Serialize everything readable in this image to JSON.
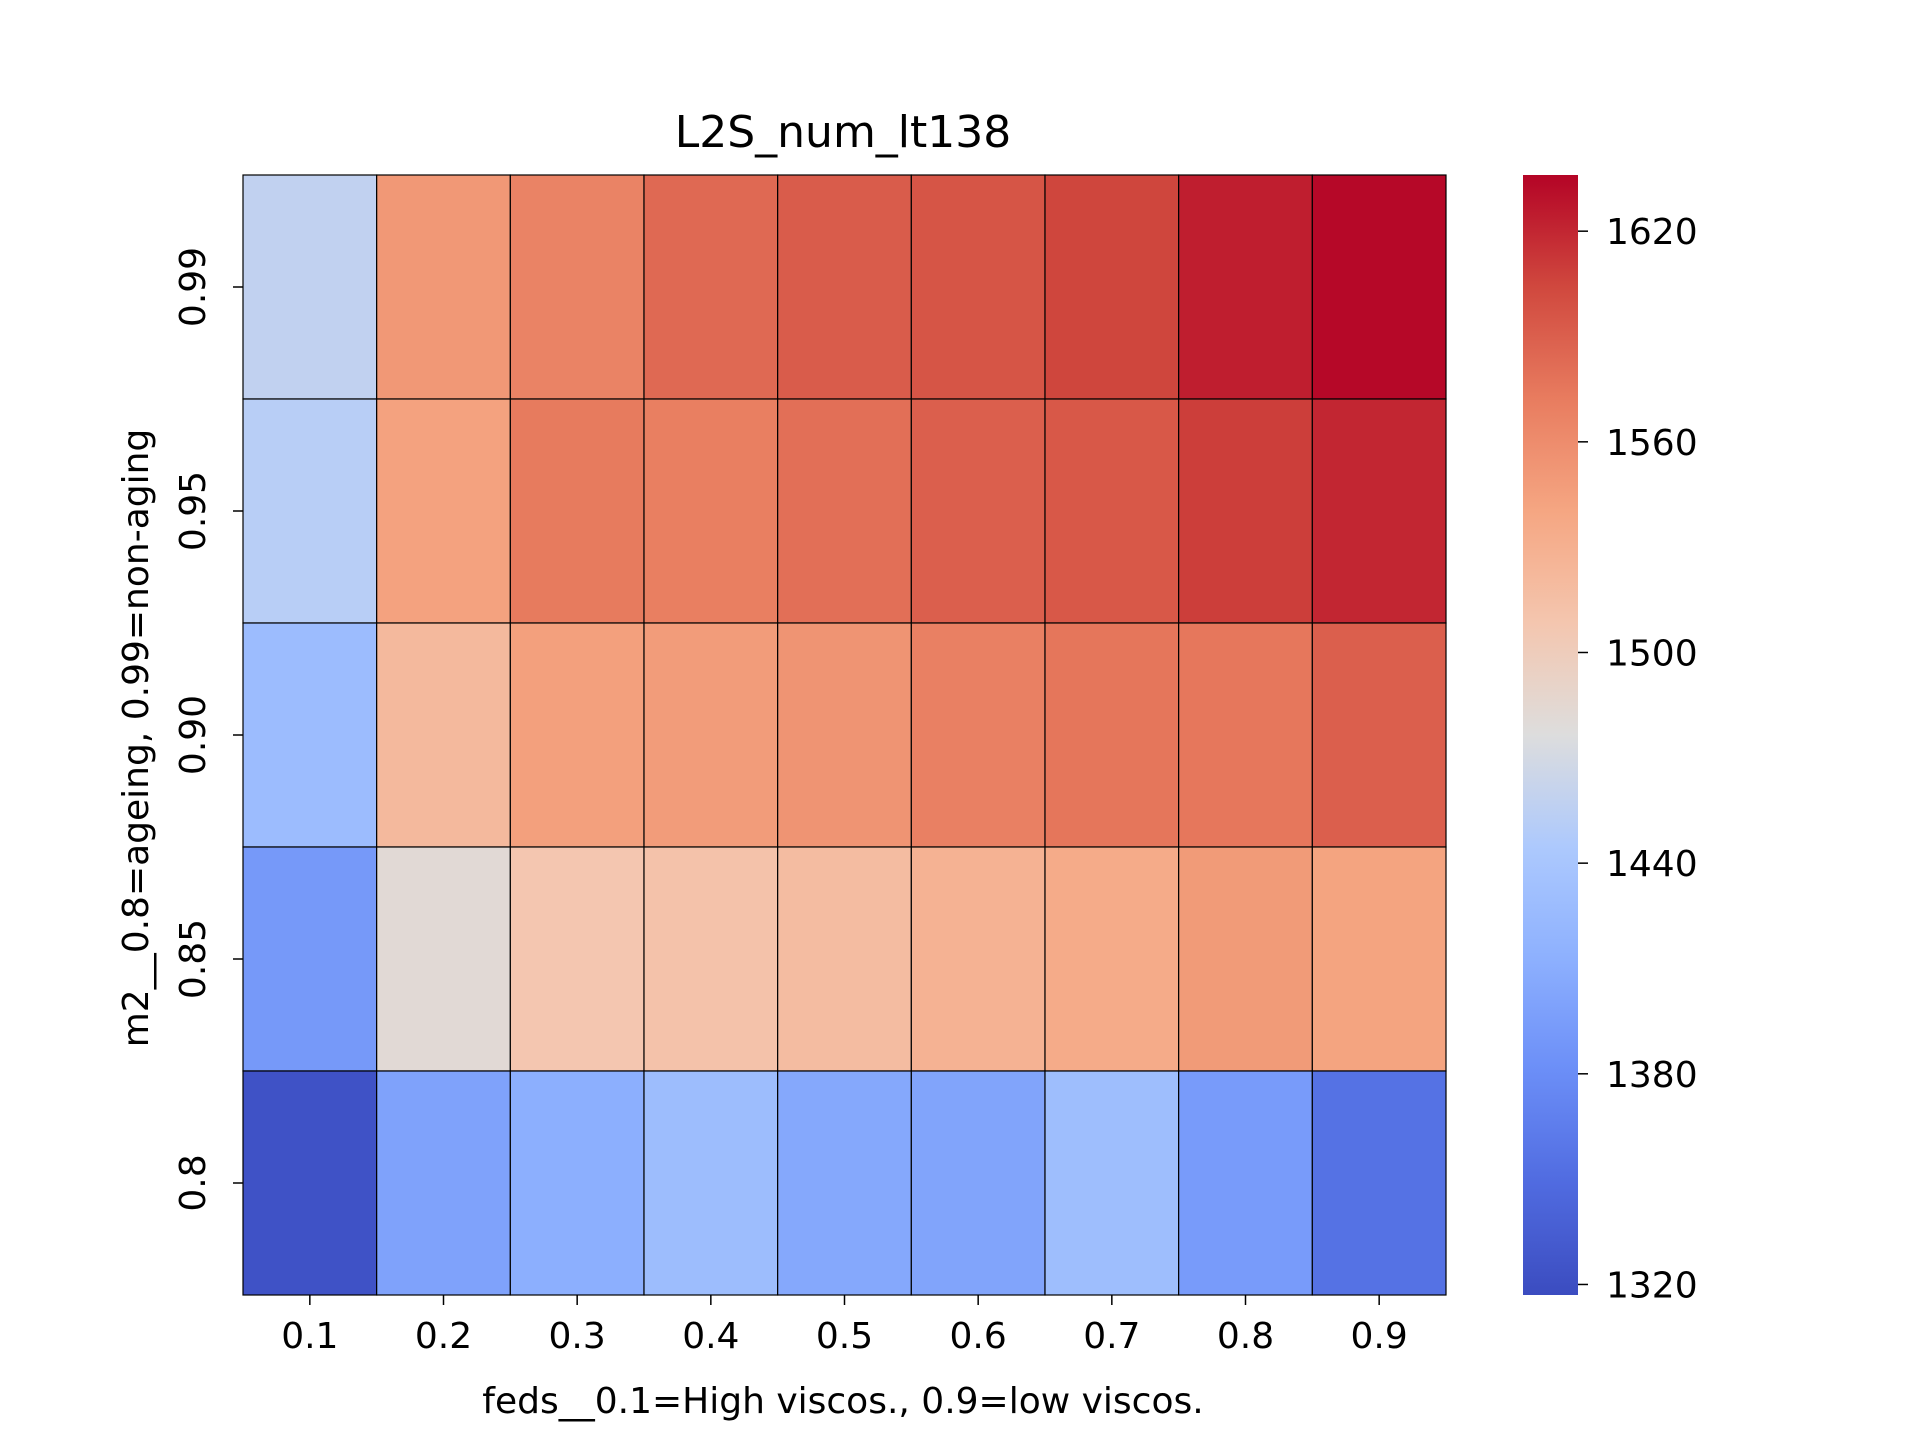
{
  "chart_data": {
    "type": "heatmap",
    "title": "L2S_num_lt138",
    "xlabel": "feds__0.1=High viscos., 0.9=low viscos.",
    "ylabel": "m2__0.8=ageing, 0.99=non-aging",
    "x_categories": [
      "0.1",
      "0.2",
      "0.3",
      "0.4",
      "0.5",
      "0.6",
      "0.7",
      "0.8",
      "0.9"
    ],
    "y_categories": [
      "0.99",
      "0.95",
      "0.90",
      "0.85",
      "0.8"
    ],
    "values": [
      [
        1458,
        1551,
        1567,
        1584,
        1592,
        1596,
        1605,
        1624,
        1634
      ],
      [
        1452,
        1543,
        1573,
        1570,
        1580,
        1590,
        1594,
        1609,
        1620
      ],
      [
        1428,
        1521,
        1545,
        1548,
        1554,
        1569,
        1576,
        1575,
        1590
      ],
      [
        1391,
        1482,
        1508,
        1512,
        1518,
        1528,
        1535,
        1549,
        1542
      ],
      [
        1323,
        1400,
        1412,
        1429,
        1405,
        1401,
        1430,
        1393,
        1355
      ]
    ],
    "colormap": "coolwarm",
    "color_range": [
      1317,
      1636
    ],
    "colorbar_ticks": [
      1320,
      1380,
      1440,
      1500,
      1560,
      1620
    ],
    "cell_edgecolor": "#000000"
  }
}
